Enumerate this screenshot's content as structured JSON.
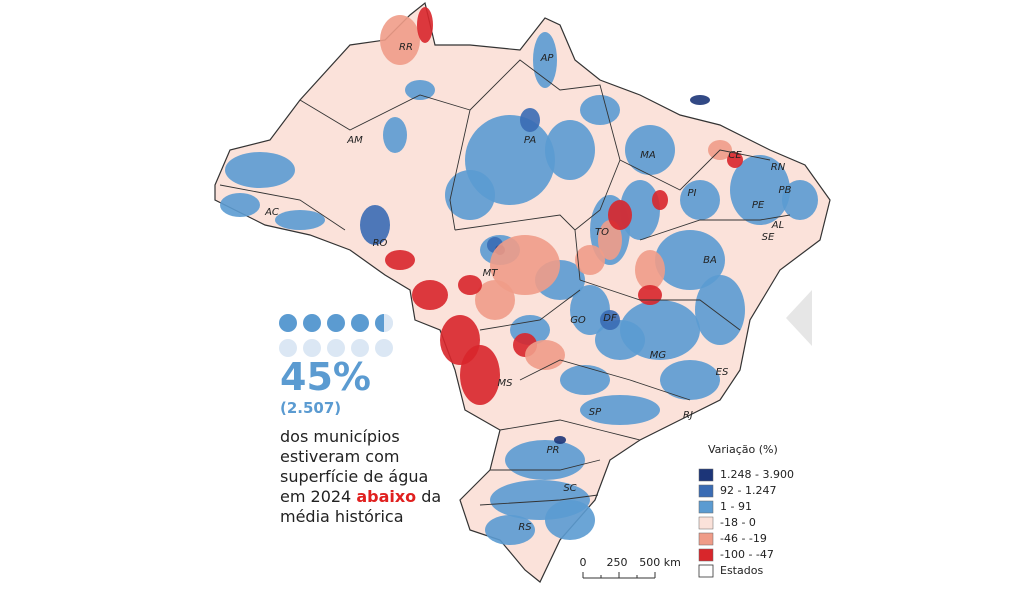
{
  "stat": {
    "percent": "45%",
    "count": "(2.507)",
    "lines": [
      "dos municípios",
      "estiveram com",
      "superfície de água",
      "média histórica"
    ],
    "line4": {
      "before": "em 2024 ",
      "highlight": "abaixo",
      "after": " da"
    }
  },
  "states": [
    "RR",
    "AP",
    "AM",
    "PA",
    "MA",
    "CE",
    "RN",
    "PB",
    "PI",
    "PE",
    "AL",
    "SE",
    "AC",
    "TO",
    "RO",
    "BA",
    "MT",
    "GO",
    "DF",
    "MG",
    "ES",
    "MS",
    "SP",
    "RJ",
    "PR",
    "SC",
    "RS"
  ],
  "legend": {
    "title": "Variação (%)",
    "items": [
      {
        "label": "1.248 - 3.900",
        "color": "#1c3578"
      },
      {
        "label": "92 - 1.247",
        "color": "#3a6cb4"
      },
      {
        "label": "1 - 91",
        "color": "#5b9bd1"
      },
      {
        "label": "-18 - 0",
        "color": "#fbe2da"
      },
      {
        "label": "-46 - -19",
        "color": "#ef9c88"
      },
      {
        "label": "-100 - -47",
        "color": "#d8262b"
      }
    ],
    "outline_label": "Estados"
  },
  "scale": [
    "0",
    "250",
    "500 km"
  ]
}
